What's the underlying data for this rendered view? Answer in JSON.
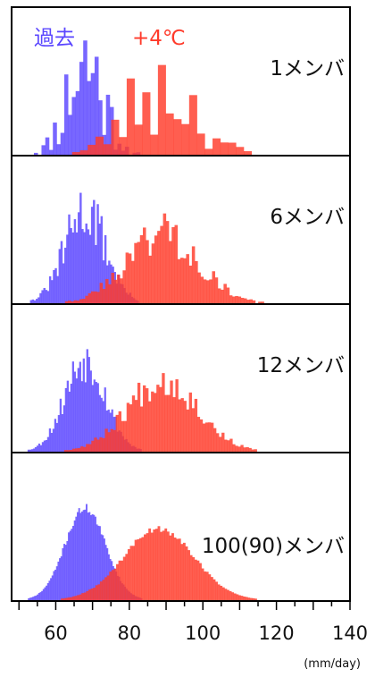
{
  "chart_data": {
    "type": "bar",
    "title": "",
    "xlabel": "(mm/day)",
    "ylabel": "",
    "xlim": [
      48,
      140
    ],
    "x_ticks": [
      60,
      80,
      100,
      120,
      140
    ],
    "legend": {
      "placement": "top-left",
      "entries": [
        {
          "name": "過去",
          "color": "#5a46ff"
        },
        {
          "name": "+4℃",
          "color": "#ff3a2a"
        }
      ]
    },
    "panels": [
      {
        "label": "1メンバ",
        "past": {
          "mean": 68,
          "sd": 5.0,
          "bins": 32,
          "noise": 0.85,
          "seed": 11
        },
        "future": {
          "mean": 89,
          "sd": 9.0,
          "bins": 28,
          "noise": 0.85,
          "seed": 23
        }
      },
      {
        "label": "6メンバ",
        "past": {
          "mean": 68,
          "sd": 5.5,
          "bins": 70,
          "noise": 0.35,
          "seed": 31
        },
        "future": {
          "mean": 89,
          "sd": 9.5,
          "bins": 80,
          "noise": 0.35,
          "seed": 43
        }
      },
      {
        "label": "12メンバ",
        "past": {
          "mean": 68,
          "sd": 5.5,
          "bins": 75,
          "noise": 0.25,
          "seed": 53
        },
        "future": {
          "mean": 89,
          "sd": 9.5,
          "bins": 85,
          "noise": 0.25,
          "seed": 67
        }
      },
      {
        "label": "100(90)メンバ",
        "past": {
          "mean": 68,
          "sd": 5.5,
          "bins": 90,
          "noise": 0.05,
          "seed": 71
        },
        "future": {
          "mean": 88,
          "sd": 9.5,
          "bins": 100,
          "noise": 0.05,
          "seed": 89
        }
      }
    ]
  }
}
